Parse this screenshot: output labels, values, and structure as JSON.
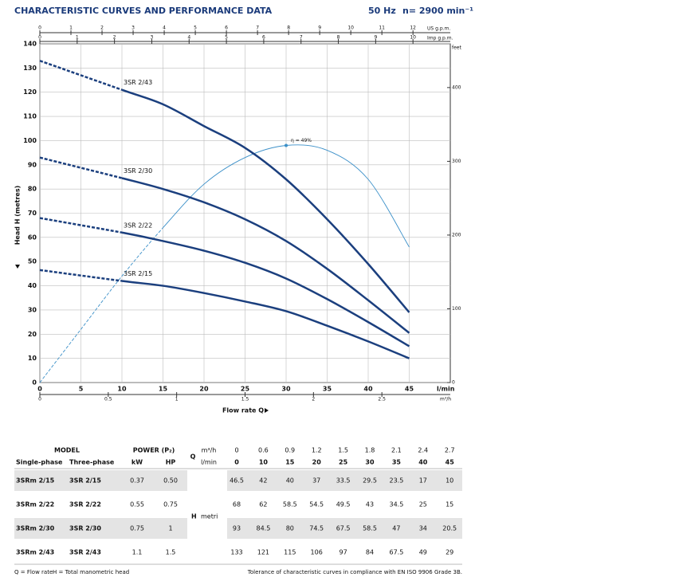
{
  "header": {
    "title": "CHARACTERISTIC CURVES AND PERFORMANCE DATA",
    "frequency": "50 Hz",
    "speed": "n= 2900 min⁻¹"
  },
  "chart_data": {
    "type": "line",
    "x_label": "Flow rate Q",
    "y_label": "Head H (metres)",
    "x_unit": "l/min",
    "x": [
      0,
      10,
      15,
      20,
      25,
      30,
      35,
      40,
      45
    ],
    "xlim": [
      0,
      50
    ],
    "xticks": [
      0,
      5,
      10,
      15,
      20,
      25,
      30,
      35,
      40,
      45
    ],
    "ylim": [
      0,
      140
    ],
    "yticks": [
      0,
      10,
      20,
      30,
      40,
      50,
      60,
      70,
      80,
      90,
      100,
      110,
      120,
      130,
      140
    ],
    "grid": true,
    "series": [
      {
        "name": "3SR 2/43",
        "color": "#1b3f7e",
        "values": [
          133,
          121,
          115,
          106,
          97,
          84,
          67.5,
          49,
          29
        ]
      },
      {
        "name": "3SR 2/30",
        "color": "#1b3f7e",
        "values": [
          93,
          84.5,
          80,
          74.5,
          67.5,
          58.5,
          47,
          34,
          20.5
        ]
      },
      {
        "name": "3SR 2/22",
        "color": "#1b3f7e",
        "values": [
          68,
          62,
          58.5,
          54.5,
          49.5,
          43,
          34.5,
          25,
          15
        ]
      },
      {
        "name": "3SR 2/15",
        "color": "#1b3f7e",
        "values": [
          46.5,
          42,
          40,
          37,
          33.5,
          29.5,
          23.5,
          17,
          10
        ]
      }
    ],
    "efficiency": {
      "label": "η = 49%",
      "color": "#3a8fc8",
      "x": [
        0,
        5,
        10,
        15,
        20,
        25,
        30,
        35,
        40,
        45
      ],
      "values": [
        0,
        22,
        44,
        64,
        82,
        93,
        98,
        96,
        84,
        56
      ]
    },
    "secondary_axes": {
      "us_gpm": {
        "label": "US g.p.m.",
        "lim": [
          0,
          13.2
        ],
        "ticks": [
          0,
          1,
          2,
          3,
          4,
          5,
          6,
          7,
          8,
          9,
          10,
          11,
          12
        ]
      },
      "imp_gpm": {
        "label": "Imp g.p.m.",
        "lim": [
          0,
          11
        ],
        "ticks": [
          0,
          1,
          2,
          3,
          4,
          5,
          6,
          7,
          8,
          9,
          10
        ]
      },
      "m3h": {
        "label": "m³/h",
        "lim": [
          0,
          3
        ],
        "ticks": [
          0,
          0.5,
          1,
          1.5,
          2,
          2.5
        ]
      },
      "feet": {
        "label": "feet",
        "lim": [
          0,
          459.3
        ],
        "ticks": [
          0,
          100,
          200,
          300,
          400
        ]
      }
    }
  },
  "table": {
    "model": "MODEL",
    "single_phase": "Single-phase",
    "three_phase": "Three-phase",
    "power": "POWER (P₂)",
    "kw": "kW",
    "hp": "HP",
    "q": "Q",
    "m3h_unit": "m³/h",
    "lmin_unit": "l/min",
    "h": "H",
    "h_unit": "metri",
    "q_m3h": [
      "0",
      "0.6",
      "0.9",
      "1.2",
      "1.5",
      "1.8",
      "2.1",
      "2.4",
      "2.7"
    ],
    "q_lmin": [
      "0",
      "10",
      "15",
      "20",
      "25",
      "30",
      "35",
      "40",
      "45"
    ],
    "rows": [
      {
        "single": "3SRm 2/15",
        "three": "3SR 2/15",
        "kw": "0.37",
        "hp": "0.50",
        "heads": [
          "46.5",
          "42",
          "40",
          "37",
          "33.5",
          "29.5",
          "23.5",
          "17",
          "10"
        ]
      },
      {
        "single": "3SRm 2/22",
        "three": "3SR 2/22",
        "kw": "0.55",
        "hp": "0.75",
        "heads": [
          "68",
          "62",
          "58.5",
          "54.5",
          "49.5",
          "43",
          "34.5",
          "25",
          "15"
        ]
      },
      {
        "single": "3SRm 2/30",
        "three": "3SR 2/30",
        "kw": "0.75",
        "hp": "1",
        "heads": [
          "93",
          "84.5",
          "80",
          "74.5",
          "67.5",
          "58.5",
          "47",
          "34",
          "20.5"
        ]
      },
      {
        "single": "3SRm 2/43",
        "three": "3SR 2/43",
        "kw": "1.1",
        "hp": "1.5",
        "heads": [
          "133",
          "121",
          "115",
          "106",
          "97",
          "84",
          "67.5",
          "49",
          "29"
        ]
      }
    ]
  },
  "footer": {
    "q_legend": "Q = Flow rate",
    "h_legend": "H = Total manometric head",
    "tolerance": "Tolerance of characteristic curves in compliance with EN ISO 9906 Grade 3B."
  }
}
